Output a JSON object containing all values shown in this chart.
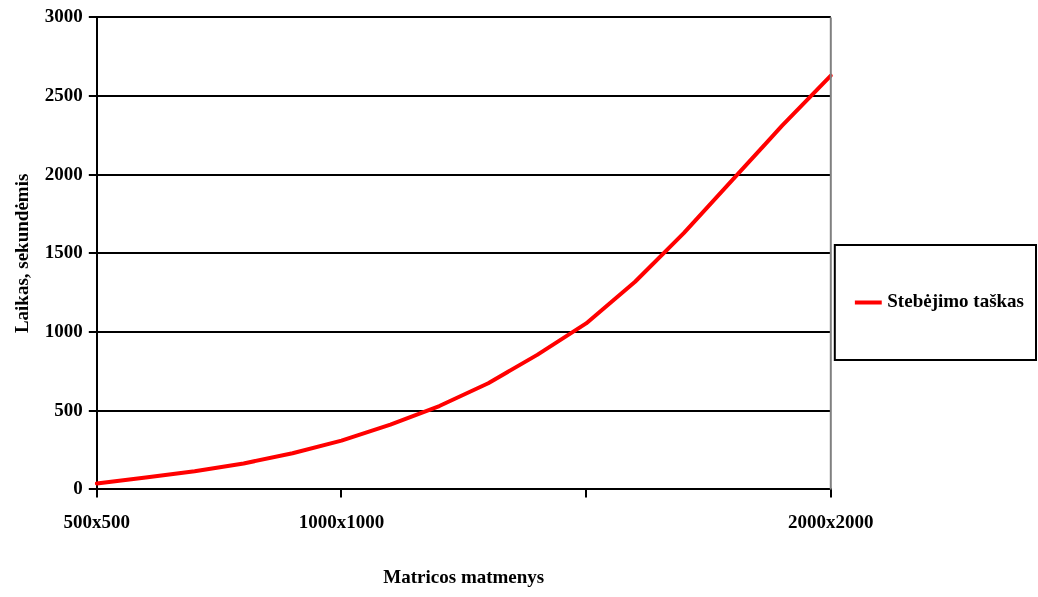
{
  "chart_data": {
    "type": "line",
    "xlabel": "Matricos matmenys",
    "ylabel": "Laikas, sekundėmis",
    "categories": [
      "500x500",
      null,
      null,
      null,
      null,
      "1000x1000",
      null,
      null,
      null,
      null,
      null,
      null,
      null,
      null,
      null,
      "2000x2000"
    ],
    "series": [
      {
        "name": "Stebėjimo taškas",
        "color": "#ff0000",
        "values": [
          37,
          75,
          115,
          165,
          230,
          310,
          412,
          530,
          675,
          855,
          1055,
          1320,
          1630,
          1970,
          2310,
          2630
        ]
      }
    ],
    "ylim": [
      0,
      3000
    ],
    "yticks": [
      0,
      500,
      1000,
      1500,
      2000,
      2500,
      3000
    ],
    "grid": "y",
    "legend": "right",
    "marker": "none",
    "line_style": "solid"
  }
}
